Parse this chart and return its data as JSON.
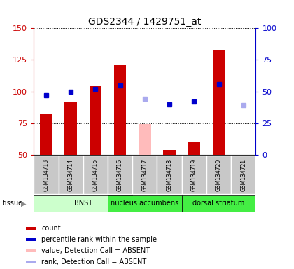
{
  "title": "GDS2344 / 1429751_at",
  "samples": [
    "GSM134713",
    "GSM134714",
    "GSM134715",
    "GSM134716",
    "GSM134717",
    "GSM134718",
    "GSM134719",
    "GSM134720",
    "GSM134721"
  ],
  "bar_values": [
    82,
    92,
    104,
    121,
    null,
    54,
    60,
    133,
    null
  ],
  "bar_absent_values": [
    null,
    null,
    null,
    null,
    74,
    null,
    null,
    null,
    null
  ],
  "bar_color_present": "#cc0000",
  "bar_color_absent": "#ffbbbb",
  "rank_present": [
    47,
    50,
    52,
    55,
    null,
    40,
    42,
    56,
    null
  ],
  "rank_absent": [
    null,
    null,
    null,
    null,
    44,
    null,
    null,
    null,
    39
  ],
  "rank_present_color": "#0000cc",
  "rank_absent_color": "#aaaaee",
  "ylim_left": [
    50,
    150
  ],
  "ylim_right": [
    0,
    100
  ],
  "left_yticks": [
    50,
    75,
    100,
    125,
    150
  ],
  "right_yticks": [
    0,
    25,
    50,
    75,
    100
  ],
  "left_ycolor": "#cc0000",
  "right_ycolor": "#0000cc",
  "tissue_label": "tissue",
  "tissue_groups": [
    {
      "label": "BNST",
      "start": 0,
      "end": 3,
      "color": "#ccffcc"
    },
    {
      "label": "nucleus accumbens",
      "start": 3,
      "end": 5,
      "color": "#44ee44"
    },
    {
      "label": "dorsal striatum",
      "start": 6,
      "end": 8,
      "color": "#44ee44"
    }
  ],
  "legend_labels": [
    "count",
    "percentile rank within the sample",
    "value, Detection Call = ABSENT",
    "rank, Detection Call = ABSENT"
  ],
  "legend_colors": [
    "#cc0000",
    "#0000cc",
    "#ffbbbb",
    "#aaaaee"
  ],
  "bar_width": 0.5,
  "fig_width": 4.2,
  "fig_height": 3.84,
  "dpi": 100
}
